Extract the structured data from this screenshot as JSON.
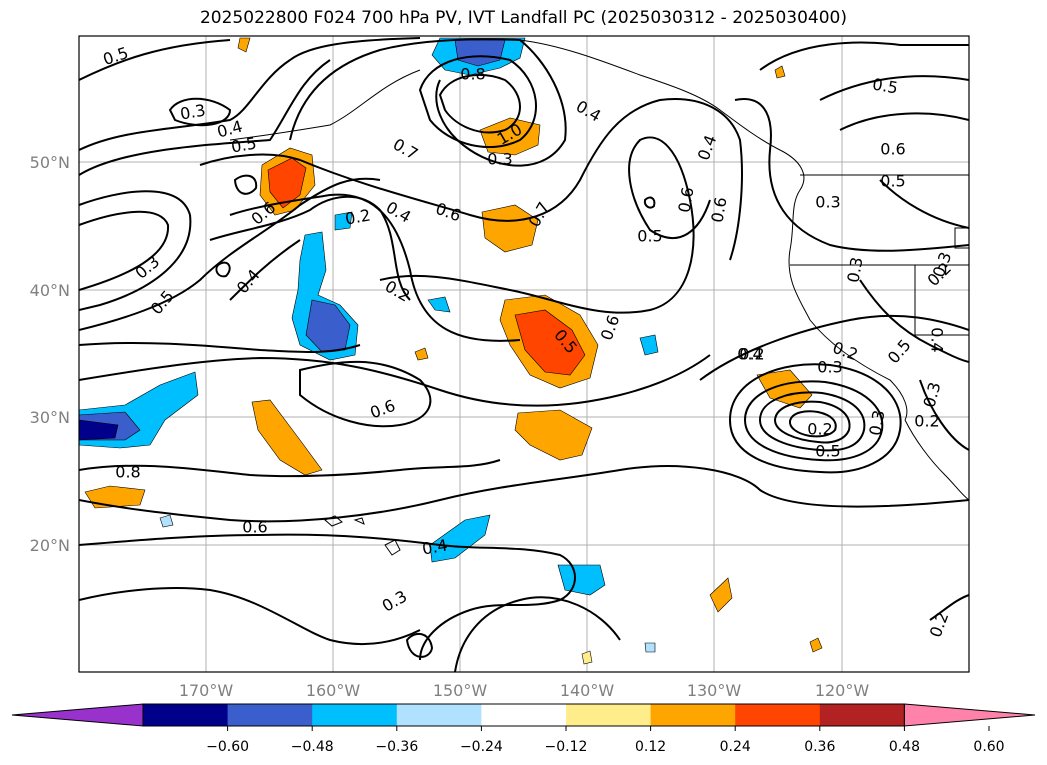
{
  "title": "2025022800 F024 700 hPa PV, IVT Landfall PC (2025030312 - 2025030400)",
  "map": {
    "lat_labels": [
      "50°N",
      "40°N",
      "30°N",
      "20°N"
    ],
    "lon_labels": [
      "170°W",
      "160°W",
      "150°W",
      "140°W",
      "130°W",
      "120°W"
    ],
    "lon_range": [
      -180,
      -110
    ],
    "lat_range": [
      10,
      60
    ],
    "gridlines": true
  },
  "contour_labels": [
    "0.5",
    "0.3",
    "0.4",
    "0.5",
    "0.8",
    "1.0",
    "0.4",
    "0.4",
    "0.6",
    "0.7",
    "0.6",
    "0.7",
    "0.6",
    "0.5",
    "0.5",
    "0.6",
    "0.5",
    "0.3",
    "0.2",
    "0.4",
    "0.3",
    "0.5",
    "0.4",
    "0.6",
    "0.2",
    "0.5",
    "0.6",
    "0.3",
    "0.3",
    "0.4",
    "0.2",
    "0.2",
    "0.5",
    "0.3",
    "0.2",
    "0.3",
    "0.2",
    "0.5",
    "0.3",
    "0.8",
    "0.6",
    "0.4",
    "0.3",
    "0.2",
    "0.4",
    "0.6",
    "0.3",
    "0.2"
  ],
  "colorbar": {
    "ticks": [
      "−0.60",
      "−0.48",
      "−0.36",
      "−0.24",
      "−0.12",
      "0.12",
      "0.24",
      "0.36",
      "0.48",
      "0.60"
    ],
    "colors": [
      "#9932CC",
      "#00008B",
      "#3A5FCD",
      "#00BFFF",
      "#B0E2FF",
      "#FFFFFF",
      "#FFEC8B",
      "#FFA500",
      "#FF4500",
      "#B22222",
      "#FF82AB"
    ]
  }
}
